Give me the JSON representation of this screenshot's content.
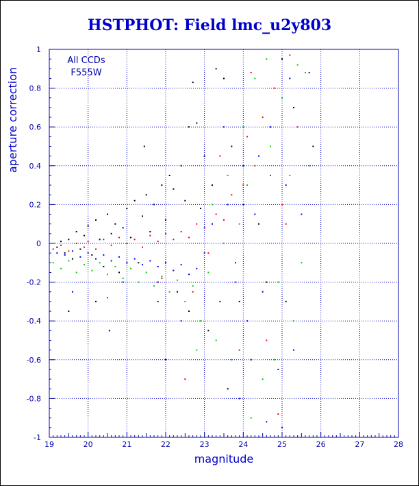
{
  "chart_data": {
    "type": "scatter",
    "title": "HSTPHOT: Field lmc_u2y803",
    "xlabel": "magnitude",
    "ylabel": "aperture correction",
    "xlim": [
      19,
      28
    ],
    "ylim": [
      -1,
      1
    ],
    "xticks": [
      "19",
      "20",
      "21",
      "22",
      "23",
      "24",
      "25",
      "26",
      "27",
      "28"
    ],
    "yticks": [
      "1",
      "0.8",
      "0.6",
      "0.4",
      "0.2",
      "0",
      "-0.2",
      "-0.4",
      "-0.6",
      "-0.8",
      "-1"
    ],
    "annotation": [
      "All CCDs",
      "F555W"
    ],
    "grid": "dotted",
    "colors": {
      "title": "#0000cc",
      "axis": "#0000aa",
      "grid": "#0000cc"
    },
    "series": [
      {
        "color": "#000000",
        "points": [
          [
            19.2,
            -0.02
          ],
          [
            19.3,
            0.01
          ],
          [
            19.4,
            -0.05
          ],
          [
            19.5,
            0.02
          ],
          [
            19.6,
            -0.08
          ],
          [
            19.7,
            0.06
          ],
          [
            19.8,
            -0.03
          ],
          [
            19.9,
            0.04
          ],
          [
            20.0,
            0.09
          ],
          [
            20.1,
            -0.06
          ],
          [
            20.2,
            0.12
          ],
          [
            20.3,
            0.02
          ],
          [
            20.4,
            -0.12
          ],
          [
            20.5,
            0.15
          ],
          [
            20.6,
            0.05
          ],
          [
            20.7,
            0.1
          ],
          [
            20.8,
            -0.15
          ],
          [
            20.9,
            0.08
          ],
          [
            21.0,
            0.18
          ],
          [
            21.1,
            0.03
          ],
          [
            21.2,
            0.22
          ],
          [
            21.3,
            -0.1
          ],
          [
            21.4,
            0.14
          ],
          [
            21.5,
            0.25
          ],
          [
            21.6,
            0.06
          ],
          [
            21.7,
            0.2
          ],
          [
            21.8,
            -0.2
          ],
          [
            21.9,
            0.3
          ],
          [
            22.0,
            0.12
          ],
          [
            22.1,
            0.35
          ],
          [
            22.2,
            0.28
          ],
          [
            22.3,
            -0.25
          ],
          [
            22.4,
            0.4
          ],
          [
            22.5,
            0.22
          ],
          [
            22.6,
            -0.35
          ],
          [
            22.7,
            0.83
          ],
          [
            22.8,
            0.62
          ],
          [
            22.9,
            0.18
          ],
          [
            23.0,
            0.45
          ],
          [
            23.1,
            -0.45
          ],
          [
            23.2,
            0.3
          ],
          [
            23.3,
            0.9
          ],
          [
            23.5,
            0.85
          ],
          [
            23.7,
            0.5
          ],
          [
            23.9,
            -0.3
          ],
          [
            24.0,
            0.2
          ],
          [
            24.2,
            -0.6
          ],
          [
            24.4,
            0.1
          ],
          [
            24.6,
            -0.2
          ],
          [
            25.0,
            0.95
          ],
          [
            25.3,
            0.7
          ],
          [
            25.8,
            0.5
          ],
          [
            20.55,
            -0.45
          ],
          [
            22.0,
            -0.6
          ],
          [
            22.6,
            0.6
          ],
          [
            21.45,
            0.5
          ],
          [
            19.5,
            -0.35
          ],
          [
            20.2,
            -0.3
          ],
          [
            23.6,
            -0.75
          ],
          [
            25.1,
            -0.3
          ]
        ]
      },
      {
        "color": "#ff0000",
        "points": [
          [
            19.1,
            -0.03
          ],
          [
            19.3,
            -0.01
          ],
          [
            19.5,
            -0.04
          ],
          [
            19.7,
            0.0
          ],
          [
            19.9,
            -0.02
          ],
          [
            20.0,
            0.01
          ],
          [
            20.2,
            -0.03
          ],
          [
            20.4,
            0.02
          ],
          [
            20.6,
            -0.01
          ],
          [
            20.8,
            0.03
          ],
          [
            21.0,
            0.0
          ],
          [
            21.2,
            0.02
          ],
          [
            21.4,
            -0.02
          ],
          [
            21.6,
            0.04
          ],
          [
            21.8,
            0.01
          ],
          [
            22.0,
            0.05
          ],
          [
            22.2,
            0.02
          ],
          [
            22.4,
            0.06
          ],
          [
            22.6,
            0.03
          ],
          [
            22.8,
            0.1
          ],
          [
            23.0,
            0.08
          ],
          [
            23.1,
            -0.05
          ],
          [
            23.3,
            0.15
          ],
          [
            23.5,
            0.12
          ],
          [
            23.7,
            0.25
          ],
          [
            23.8,
            -0.2
          ],
          [
            24.0,
            0.3
          ],
          [
            24.1,
            0.55
          ],
          [
            24.3,
            0.4
          ],
          [
            24.5,
            0.65
          ],
          [
            24.6,
            -0.5
          ],
          [
            24.8,
            0.8
          ],
          [
            25.0,
            0.2
          ],
          [
            25.2,
            0.97
          ],
          [
            25.4,
            0.6
          ],
          [
            24.9,
            -0.88
          ],
          [
            24.2,
            0.88
          ],
          [
            23.9,
            -0.55
          ],
          [
            22.5,
            -0.7
          ],
          [
            22.7,
            -0.25
          ],
          [
            21.9,
            -0.18
          ],
          [
            20.5,
            -0.28
          ],
          [
            23.4,
            0.45
          ],
          [
            24.7,
            0.35
          ],
          [
            25.1,
            0.1
          ]
        ]
      },
      {
        "color": "#00cc00",
        "points": [
          [
            19.1,
            -0.1
          ],
          [
            19.3,
            -0.13
          ],
          [
            19.5,
            -0.09
          ],
          [
            19.7,
            -0.15
          ],
          [
            19.9,
            -0.11
          ],
          [
            20.1,
            -0.14
          ],
          [
            20.3,
            -0.1
          ],
          [
            20.5,
            -0.16
          ],
          [
            20.7,
            -0.12
          ],
          [
            20.9,
            -0.18
          ],
          [
            21.1,
            -0.13
          ],
          [
            21.3,
            -0.2
          ],
          [
            21.5,
            -0.15
          ],
          [
            21.7,
            -0.22
          ],
          [
            21.9,
            -0.17
          ],
          [
            22.1,
            -0.25
          ],
          [
            22.3,
            -0.19
          ],
          [
            22.5,
            -0.3
          ],
          [
            22.7,
            -0.22
          ],
          [
            22.9,
            -0.4
          ],
          [
            23.1,
            -0.15
          ],
          [
            23.3,
            -0.5
          ],
          [
            23.5,
            0.0
          ],
          [
            23.7,
            -0.6
          ],
          [
            23.9,
            0.1
          ],
          [
            24.0,
            0.6
          ],
          [
            24.1,
            0.3
          ],
          [
            24.3,
            0.85
          ],
          [
            24.5,
            -0.7
          ],
          [
            24.7,
            0.5
          ],
          [
            24.9,
            -0.2
          ],
          [
            25.0,
            0.75
          ],
          [
            25.2,
            0.35
          ],
          [
            25.4,
            0.92
          ],
          [
            25.5,
            -0.1
          ],
          [
            25.6,
            0.88
          ],
          [
            25.3,
            -0.4
          ],
          [
            24.6,
            0.95
          ],
          [
            24.2,
            -0.9
          ],
          [
            23.6,
            0.35
          ],
          [
            22.8,
            -0.55
          ],
          [
            23.2,
            0.2
          ],
          [
            24.8,
            -0.6
          ],
          [
            25.7,
            0.4
          ]
        ]
      },
      {
        "color": "#0000ee",
        "points": [
          [
            19.2,
            -0.05
          ],
          [
            19.4,
            -0.06
          ],
          [
            19.6,
            -0.04
          ],
          [
            19.8,
            -0.07
          ],
          [
            20.0,
            -0.05
          ],
          [
            20.2,
            -0.08
          ],
          [
            20.4,
            -0.06
          ],
          [
            20.6,
            -0.09
          ],
          [
            20.8,
            -0.07
          ],
          [
            21.0,
            -0.1
          ],
          [
            21.2,
            -0.08
          ],
          [
            21.4,
            -0.11
          ],
          [
            21.6,
            -0.09
          ],
          [
            21.8,
            -0.12
          ],
          [
            22.0,
            -0.1
          ],
          [
            22.2,
            -0.14
          ],
          [
            22.4,
            -0.11
          ],
          [
            22.6,
            -0.16
          ],
          [
            22.8,
            -0.13
          ],
          [
            23.0,
            -0.05
          ],
          [
            23.2,
            0.1
          ],
          [
            23.4,
            -0.3
          ],
          [
            23.6,
            0.2
          ],
          [
            23.8,
            -0.1
          ],
          [
            24.0,
            0.4
          ],
          [
            24.1,
            -0.4
          ],
          [
            24.3,
            0.15
          ],
          [
            24.5,
            -0.25
          ],
          [
            24.7,
            0.6
          ],
          [
            24.9,
            -0.65
          ],
          [
            25.1,
            0.3
          ],
          [
            25.3,
            -0.55
          ],
          [
            25.5,
            0.15
          ],
          [
            25.7,
            0.88
          ],
          [
            25.2,
            0.85
          ],
          [
            24.4,
            0.45
          ],
          [
            23.9,
            -0.8
          ],
          [
            22.4,
            -0.4
          ],
          [
            21.8,
            -0.3
          ],
          [
            20.9,
            -0.2
          ],
          [
            19.6,
            -0.25
          ],
          [
            24.6,
            -0.92
          ],
          [
            23.5,
            0.6
          ],
          [
            25.0,
            -0.95
          ]
        ]
      }
    ]
  }
}
